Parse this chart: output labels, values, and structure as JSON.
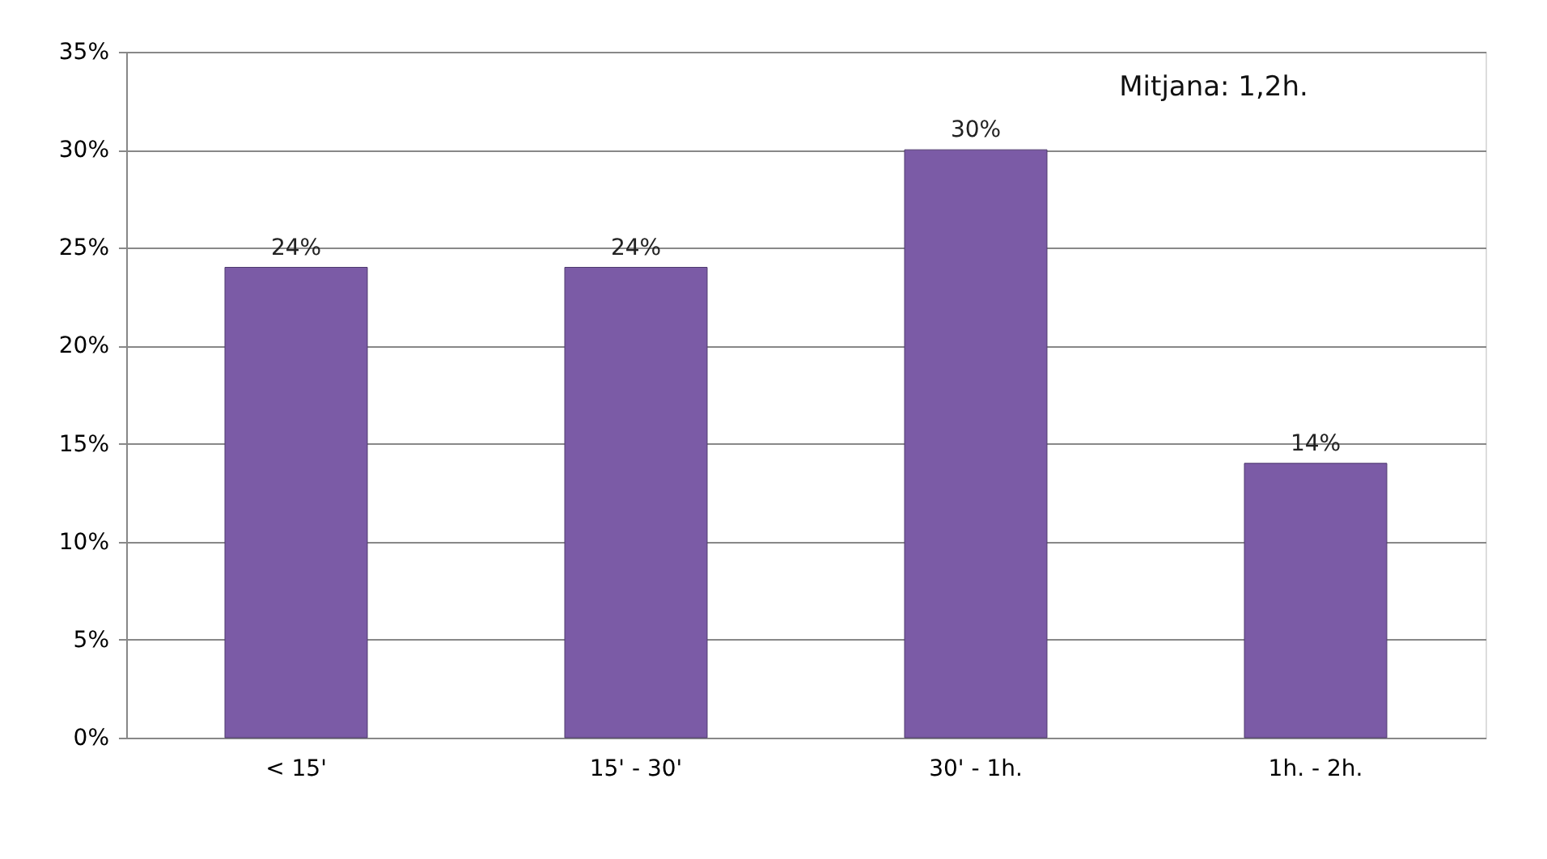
{
  "chart_data": {
    "type": "bar",
    "categories": [
      "< 15'",
      "15' - 30'",
      "30' - 1h.",
      "1h. - 2h."
    ],
    "values": [
      24,
      24,
      30,
      14
    ],
    "color": "#7b5ba6",
    "value_labels": [
      "24%",
      "24%",
      "30%",
      "14%"
    ],
    "ylim": [
      0,
      35
    ],
    "yticks": [
      {
        "value": 0,
        "label": "0%"
      },
      {
        "value": 5,
        "label": "5%"
      },
      {
        "value": 10,
        "label": "10%"
      },
      {
        "value": 15,
        "label": "15%"
      },
      {
        "value": 20,
        "label": "20%"
      },
      {
        "value": 25,
        "label": "25%"
      },
      {
        "value": 30,
        "label": "30%"
      },
      {
        "value": 35,
        "label": "35%"
      }
    ],
    "grid": "y",
    "annotations": [
      "Mitjana: 1,2h."
    ]
  }
}
